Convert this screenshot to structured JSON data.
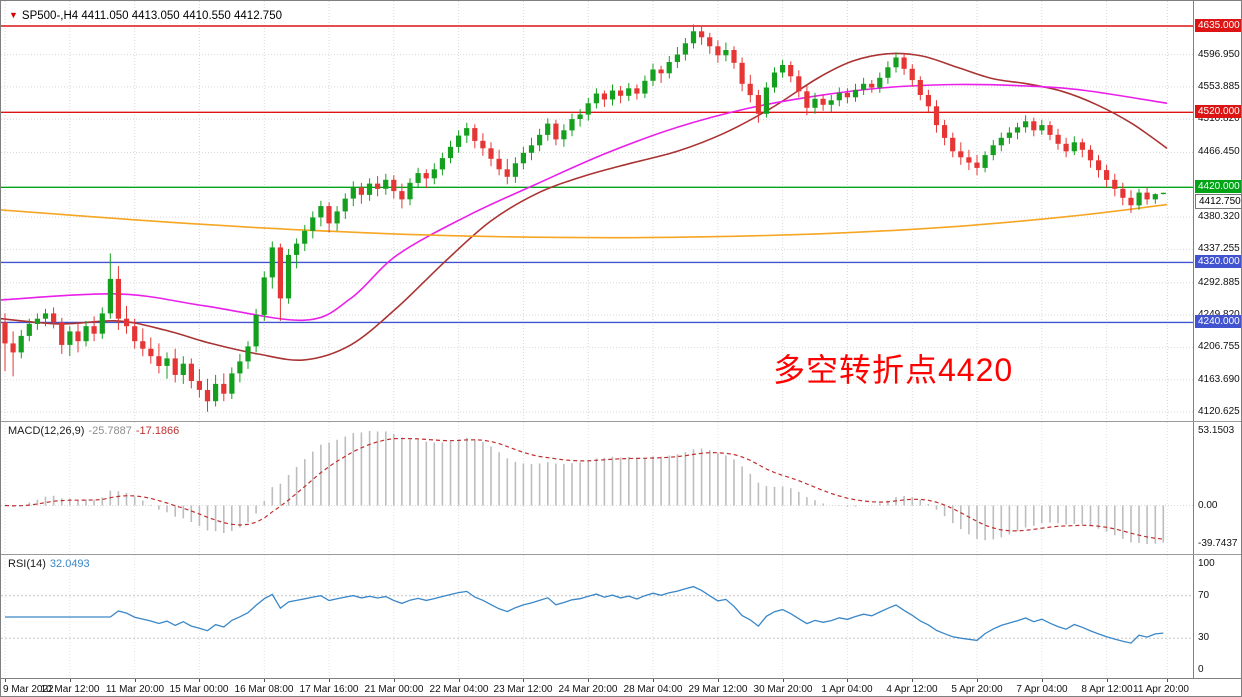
{
  "window": {
    "symbol_timeframe": "SP500-,H4",
    "ohlc_text": "4411.050 4413.050 4410.550 4412.750"
  },
  "annotation": {
    "text": "多空转折点4420",
    "color": "#ff0000"
  },
  "panels": {
    "macd": {
      "name": "MACD(12,26,9)",
      "value": "-25.7887",
      "signal_value": "-17.1866",
      "axis_labels": [
        "53.1503",
        "0.00",
        "-39.7437"
      ]
    },
    "rsi": {
      "name": "RSI(14)",
      "value": "32.0493",
      "axis_labels": [
        "100",
        "70",
        "30",
        "0"
      ]
    }
  },
  "price_axis": {
    "plain_labels": [
      "4596.950",
      "4553.885",
      "4510.820",
      "4466.450",
      "4380.320",
      "4337.255",
      "4292.885",
      "4249.820",
      "4206.755",
      "4163.690",
      "4120.625"
    ],
    "tags": [
      {
        "label": "4635.000",
        "price": 4635.0,
        "color": "#dc1414"
      },
      {
        "label": "4520.000",
        "price": 4520.0,
        "color": "#dc1414"
      },
      {
        "label": "4420.000",
        "price": 4420.0,
        "color": "#00a416"
      },
      {
        "label": "4320.000",
        "price": 4320.0,
        "color": "#4153ce"
      },
      {
        "label": "4240.000",
        "price": 4240.0,
        "color": "#4153ce"
      }
    ],
    "current_price_tag": {
      "label": "4412.750",
      "price": 4412.75
    }
  },
  "levels": [
    {
      "price": 4635.0,
      "color": "#dc1414"
    },
    {
      "price": 4520.0,
      "color": "#dc1414"
    },
    {
      "price": 4420.0,
      "color": "#00a416"
    },
    {
      "price": 4320.0,
      "color": "#4153ce"
    },
    {
      "price": 4240.0,
      "color": "#4153ce"
    }
  ],
  "time_axis": {
    "labels": [
      "9 Mar 2022",
      "10 Mar 12:00",
      "11 Mar 20:00",
      "15 Mar 00:00",
      "16 Mar 08:00",
      "17 Mar 16:00",
      "21 Mar 00:00",
      "22 Mar 04:00",
      "23 Mar 12:00",
      "24 Mar 20:00",
      "28 Mar 04:00",
      "29 Mar 12:00",
      "30 Mar 20:00",
      "1 Apr 04:00",
      "4 Apr 12:00",
      "5 Apr 20:00",
      "7 Apr 04:00",
      "8 Apr 12:00",
      "11 Apr 20:00"
    ]
  },
  "colors": {
    "up": "#14a01e",
    "down": "#e53535",
    "grid": "#d9d9d9",
    "macd_hist": "#bdbdbd",
    "macd_signal": "#c03030",
    "rsi": "#3a87c8"
  },
  "chart_data": {
    "type": "candlestick",
    "symbol": "SP500-",
    "timeframe": "H4",
    "title": "SP500-,H4 4411.050 4413.050 4410.550 4412.750",
    "y_axis_range": [
      4120.625,
      4635.0
    ],
    "horizontal_levels": [
      4635.0,
      4520.0,
      4420.0,
      4320.0,
      4240.0
    ],
    "current_bar": {
      "open": 4411.05,
      "high": 4413.05,
      "low": 4410.55,
      "close": 4412.75
    },
    "indicators": {
      "macd": {
        "params": "12,26,9",
        "value": -25.7887,
        "signal": -17.1866,
        "axis_max": 53.1503,
        "axis_min": -39.7437
      },
      "rsi": {
        "params": "14",
        "value": 32.0493,
        "levels": [
          70,
          30
        ]
      }
    },
    "candles_ohlc": [
      [
        4240,
        4252,
        4175,
        4212
      ],
      [
        4212,
        4228,
        4168,
        4200
      ],
      [
        4200,
        4230,
        4192,
        4222
      ],
      [
        4222,
        4245,
        4215,
        4238
      ],
      [
        4238,
        4252,
        4230,
        4245
      ],
      [
        4245,
        4258,
        4235,
        4252
      ],
      [
        4252,
        4260,
        4232,
        4240
      ],
      [
        4240,
        4246,
        4198,
        4210
      ],
      [
        4210,
        4235,
        4195,
        4228
      ],
      [
        4228,
        4240,
        4200,
        4215
      ],
      [
        4215,
        4242,
        4208,
        4235
      ],
      [
        4235,
        4248,
        4215,
        4225
      ],
      [
        4225,
        4260,
        4218,
        4252
      ],
      [
        4252,
        4332,
        4245,
        4298
      ],
      [
        4298,
        4315,
        4230,
        4245
      ],
      [
        4245,
        4262,
        4225,
        4235
      ],
      [
        4235,
        4245,
        4205,
        4215
      ],
      [
        4215,
        4232,
        4195,
        4205
      ],
      [
        4205,
        4220,
        4185,
        4195
      ],
      [
        4195,
        4212,
        4172,
        4182
      ],
      [
        4182,
        4200,
        4165,
        4192
      ],
      [
        4192,
        4205,
        4160,
        4170
      ],
      [
        4170,
        4195,
        4158,
        4185
      ],
      [
        4185,
        4192,
        4152,
        4162
      ],
      [
        4162,
        4178,
        4140,
        4150
      ],
      [
        4150,
        4165,
        4121,
        4135
      ],
      [
        4135,
        4170,
        4128,
        4158
      ],
      [
        4158,
        4172,
        4135,
        4145
      ],
      [
        4145,
        4180,
        4138,
        4172
      ],
      [
        4172,
        4198,
        4160,
        4188
      ],
      [
        4188,
        4215,
        4178,
        4208
      ],
      [
        4208,
        4258,
        4200,
        4250
      ],
      [
        4250,
        4308,
        4242,
        4300
      ],
      [
        4300,
        4348,
        4285,
        4340
      ],
      [
        4340,
        4345,
        4242,
        4272
      ],
      [
        4272,
        4338,
        4265,
        4330
      ],
      [
        4330,
        4352,
        4312,
        4345
      ],
      [
        4345,
        4370,
        4335,
        4362
      ],
      [
        4362,
        4388,
        4352,
        4380
      ],
      [
        4380,
        4402,
        4368,
        4395
      ],
      [
        4395,
        4400,
        4360,
        4372
      ],
      [
        4372,
        4395,
        4362,
        4388
      ],
      [
        4388,
        4412,
        4378,
        4405
      ],
      [
        4405,
        4428,
        4395,
        4420
      ],
      [
        4420,
        4426,
        4398,
        4410
      ],
      [
        4410,
        4432,
        4402,
        4425
      ],
      [
        4425,
        4435,
        4408,
        4418
      ],
      [
        4418,
        4438,
        4410,
        4430
      ],
      [
        4430,
        4436,
        4405,
        4415
      ],
      [
        4415,
        4425,
        4392,
        4404
      ],
      [
        4404,
        4432,
        4396,
        4426
      ],
      [
        4426,
        4446,
        4419,
        4439
      ],
      [
        4439,
        4444,
        4419,
        4432
      ],
      [
        4432,
        4452,
        4424,
        4444
      ],
      [
        4444,
        4466,
        4436,
        4459
      ],
      [
        4459,
        4482,
        4452,
        4474
      ],
      [
        4474,
        4496,
        4466,
        4489
      ],
      [
        4489,
        4506,
        4479,
        4499
      ],
      [
        4499,
        4504,
        4472,
        4482
      ],
      [
        4482,
        4492,
        4462,
        4472
      ],
      [
        4472,
        4480,
        4448,
        4458
      ],
      [
        4458,
        4470,
        4436,
        4444
      ],
      [
        4444,
        4458,
        4424,
        4434
      ],
      [
        4434,
        4460,
        4426,
        4452
      ],
      [
        4452,
        4474,
        4444,
        4466
      ],
      [
        4466,
        4486,
        4456,
        4476
      ],
      [
        4476,
        4498,
        4468,
        4490
      ],
      [
        4490,
        4512,
        4482,
        4505
      ],
      [
        4505,
        4510,
        4476,
        4484
      ],
      [
        4484,
        4504,
        4474,
        4496
      ],
      [
        4496,
        4518,
        4488,
        4511
      ],
      [
        4511,
        4524,
        4501,
        4517
      ],
      [
        4517,
        4539,
        4509,
        4532
      ],
      [
        4532,
        4552,
        4525,
        4545
      ],
      [
        4545,
        4549,
        4527,
        4537
      ],
      [
        4537,
        4557,
        4529,
        4549
      ],
      [
        4549,
        4555,
        4532,
        4542
      ],
      [
        4542,
        4559,
        4535,
        4552
      ],
      [
        4552,
        4557,
        4537,
        4545
      ],
      [
        4545,
        4569,
        4539,
        4562
      ],
      [
        4562,
        4585,
        4555,
        4577
      ],
      [
        4577,
        4582,
        4559,
        4572
      ],
      [
        4572,
        4595,
        4565,
        4587
      ],
      [
        4587,
        4607,
        4579,
        4597
      ],
      [
        4597,
        4619,
        4589,
        4612
      ],
      [
        4612,
        4637,
        4605,
        4628
      ],
      [
        4628,
        4634,
        4610,
        4620
      ],
      [
        4620,
        4626,
        4598,
        4608
      ],
      [
        4608,
        4616,
        4586,
        4596
      ],
      [
        4596,
        4613,
        4588,
        4603
      ],
      [
        4603,
        4608,
        4578,
        4586
      ],
      [
        4586,
        4593,
        4548,
        4558
      ],
      [
        4558,
        4570,
        4533,
        4543
      ],
      [
        4543,
        4550,
        4506,
        4518
      ],
      [
        4518,
        4560,
        4513,
        4553
      ],
      [
        4553,
        4580,
        4546,
        4573
      ],
      [
        4573,
        4590,
        4566,
        4583
      ],
      [
        4583,
        4588,
        4560,
        4568
      ],
      [
        4568,
        4576,
        4540,
        4548
      ],
      [
        4548,
        4556,
        4516,
        4526
      ],
      [
        4526,
        4546,
        4518,
        4538
      ],
      [
        4538,
        4544,
        4522,
        4530
      ],
      [
        4530,
        4543,
        4520,
        4536
      ],
      [
        4536,
        4553,
        4528,
        4546
      ],
      [
        4546,
        4552,
        4532,
        4540
      ],
      [
        4540,
        4558,
        4534,
        4550
      ],
      [
        4550,
        4566,
        4543,
        4558
      ],
      [
        4558,
        4563,
        4546,
        4553
      ],
      [
        4553,
        4573,
        4546,
        4566
      ],
      [
        4566,
        4588,
        4558,
        4580
      ],
      [
        4580,
        4600,
        4573,
        4593
      ],
      [
        4593,
        4598,
        4570,
        4578
      ],
      [
        4578,
        4584,
        4554,
        4563
      ],
      [
        4563,
        4568,
        4536,
        4543
      ],
      [
        4543,
        4550,
        4520,
        4528
      ],
      [
        4528,
        4536,
        4493,
        4503
      ],
      [
        4503,
        4510,
        4476,
        4486
      ],
      [
        4486,
        4493,
        4460,
        4468
      ],
      [
        4468,
        4480,
        4450,
        4460
      ],
      [
        4460,
        4470,
        4443,
        4453
      ],
      [
        4453,
        4463,
        4436,
        4446
      ],
      [
        4446,
        4468,
        4440,
        4463
      ],
      [
        4463,
        4483,
        4456,
        4476
      ],
      [
        4476,
        4493,
        4468,
        4486
      ],
      [
        4486,
        4500,
        4478,
        4493
      ],
      [
        4493,
        4506,
        4484,
        4500
      ],
      [
        4500,
        4516,
        4493,
        4508
      ],
      [
        4508,
        4513,
        4488,
        4496
      ],
      [
        4496,
        4510,
        4490,
        4503
      ],
      [
        4503,
        4508,
        4483,
        4490
      ],
      [
        4490,
        4498,
        4470,
        4478
      ],
      [
        4478,
        4486,
        4460,
        4468
      ],
      [
        4468,
        4488,
        4463,
        4480
      ],
      [
        4480,
        4485,
        4460,
        4470
      ],
      [
        4470,
        4476,
        4446,
        4456
      ],
      [
        4456,
        4463,
        4433,
        4443
      ],
      [
        4443,
        4450,
        4420,
        4430
      ],
      [
        4430,
        4438,
        4408,
        4418
      ],
      [
        4418,
        4426,
        4396,
        4406
      ],
      [
        4406,
        4416,
        4386,
        4396
      ],
      [
        4396,
        4418,
        4390,
        4413
      ],
      [
        4413,
        4420,
        4397,
        4404
      ],
      [
        4404,
        4412,
        4398,
        4411.05
      ],
      [
        4411.05,
        4413.05,
        4410.55,
        4412.75
      ]
    ],
    "moving_averages": [
      {
        "name": "fast-darkred",
        "color": "#aa3333",
        "points": [
          [
            0,
            4245
          ],
          [
            0.05,
            4238
          ],
          [
            0.1,
            4242
          ],
          [
            0.14,
            4230
          ],
          [
            0.18,
            4212
          ],
          [
            0.22,
            4198
          ],
          [
            0.26,
            4190
          ],
          [
            0.3,
            4210
          ],
          [
            0.34,
            4260
          ],
          [
            0.38,
            4320
          ],
          [
            0.42,
            4375
          ],
          [
            0.46,
            4412
          ],
          [
            0.5,
            4435
          ],
          [
            0.54,
            4452
          ],
          [
            0.58,
            4468
          ],
          [
            0.62,
            4492
          ],
          [
            0.66,
            4525
          ],
          [
            0.7,
            4565
          ],
          [
            0.73,
            4588
          ],
          [
            0.76,
            4598
          ],
          [
            0.79,
            4595
          ],
          [
            0.82,
            4580
          ],
          [
            0.85,
            4565
          ],
          [
            0.88,
            4558
          ],
          [
            0.91,
            4548
          ],
          [
            0.94,
            4530
          ],
          [
            0.97,
            4505
          ],
          [
            1.0,
            4472
          ]
        ]
      },
      {
        "name": "medium-magenta",
        "color": "#ea1fea",
        "points": [
          [
            0,
            4270
          ],
          [
            0.1,
            4278
          ],
          [
            0.175,
            4262
          ],
          [
            0.26,
            4243
          ],
          [
            0.3,
            4272
          ],
          [
            0.34,
            4330
          ],
          [
            0.4,
            4382
          ],
          [
            0.46,
            4425
          ],
          [
            0.52,
            4466
          ],
          [
            0.58,
            4500
          ],
          [
            0.64,
            4525
          ],
          [
            0.7,
            4542
          ],
          [
            0.76,
            4553
          ],
          [
            0.82,
            4557
          ],
          [
            0.88,
            4555
          ],
          [
            0.93,
            4549
          ],
          [
            1.0,
            4532
          ]
        ]
      },
      {
        "name": "slow-orange",
        "color": "#f5a623",
        "points": [
          [
            0,
            4390
          ],
          [
            0.13,
            4375
          ],
          [
            0.26,
            4363
          ],
          [
            0.4,
            4355
          ],
          [
            0.55,
            4353
          ],
          [
            0.7,
            4358
          ],
          [
            0.82,
            4368
          ],
          [
            0.92,
            4382
          ],
          [
            1.0,
            4397
          ]
        ]
      }
    ]
  }
}
